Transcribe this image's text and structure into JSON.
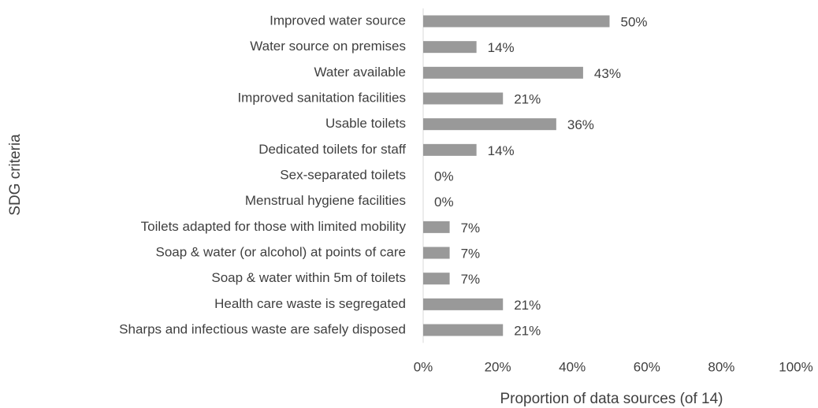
{
  "chart_data": {
    "type": "bar",
    "orientation": "horizontal",
    "y_label": "SDG criteria",
    "x_label": "Proportion of data sources (of 14)",
    "categories": [
      "Improved water source",
      "Water source on premises",
      "Water available",
      "Improved sanitation facilities",
      "Usable toilets",
      "Dedicated toilets for staff",
      "Sex-separated toilets",
      "Menstrual hygiene facilities",
      "Toilets adapted for those with limited mobility",
      "Soap & water (or alcohol) at points of care",
      "Soap & water within 5m of toilets",
      "Health care waste is segregated",
      "Sharps and infectious waste are safely disposed"
    ],
    "values": [
      50,
      14.3,
      42.9,
      21.4,
      35.7,
      14.3,
      0,
      0,
      7.1,
      7.1,
      7.1,
      21.4,
      21.4
    ],
    "value_labels": [
      "50%",
      "14%",
      "43%",
      "21%",
      "36%",
      "14%",
      "0%",
      "0%",
      "7%",
      "7%",
      "7%",
      "21%",
      "21%"
    ],
    "color": "#999999",
    "xlim": [
      0,
      100
    ],
    "xticks": [
      {
        "value": 0,
        "label": "0%"
      },
      {
        "value": 20,
        "label": "20%"
      },
      {
        "value": 40,
        "label": "40%"
      },
      {
        "value": 60,
        "label": "60%"
      },
      {
        "value": 80,
        "label": "80%"
      },
      {
        "value": 100,
        "label": "100%"
      }
    ],
    "grid": false
  }
}
